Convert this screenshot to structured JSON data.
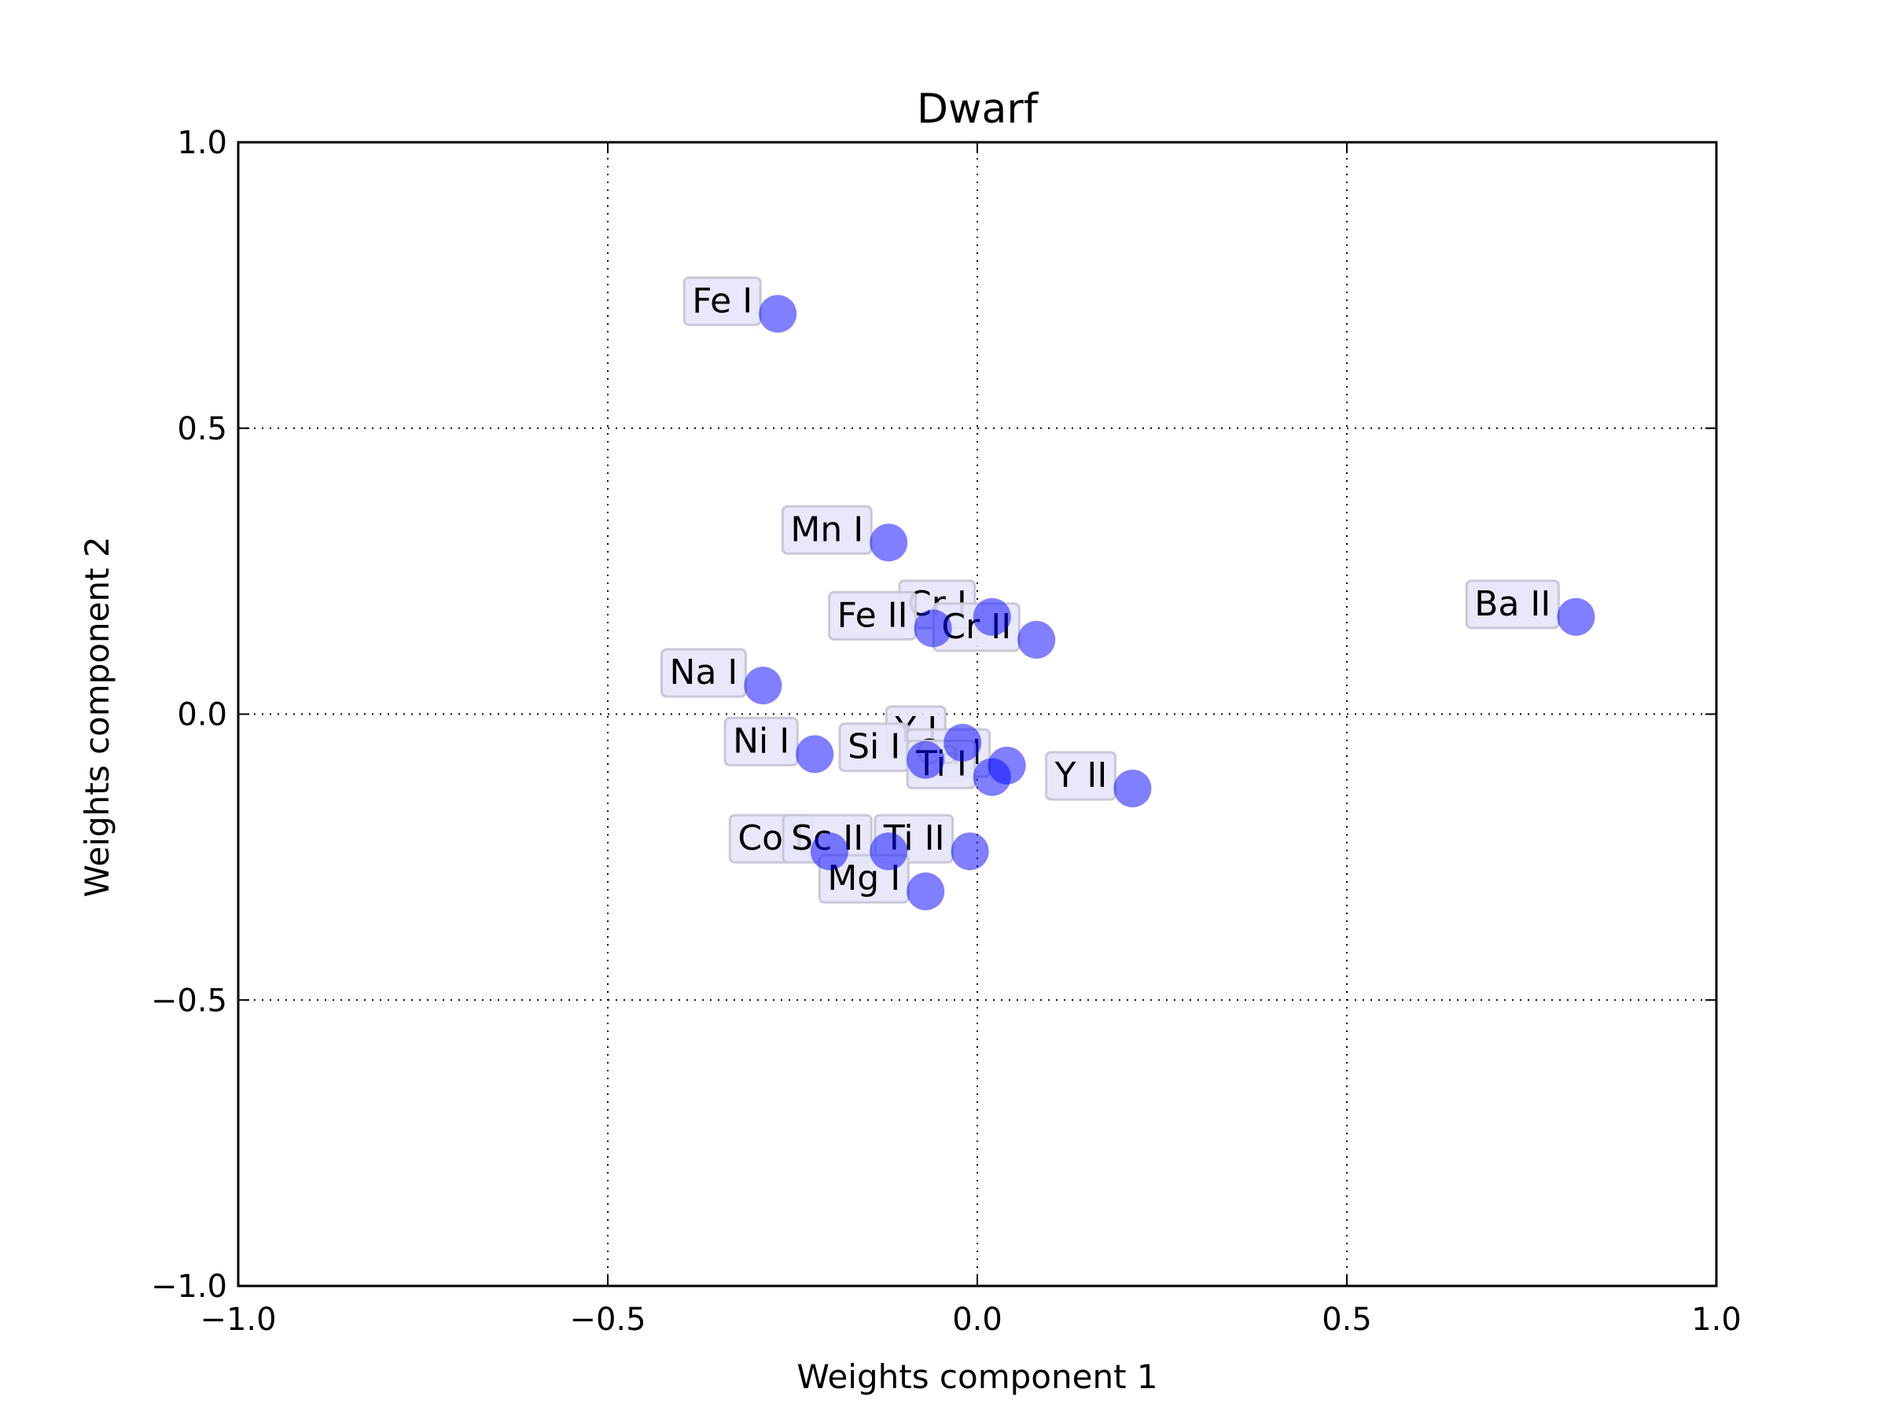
{
  "chart_data": {
    "type": "scatter",
    "title": "Dwarf",
    "xlabel": "Weights component 1",
    "ylabel": "Weights component 2",
    "xlim": [
      -1.0,
      1.0
    ],
    "ylim": [
      -1.0,
      1.0
    ],
    "xticks": [
      -1.0,
      -0.5,
      0.0,
      0.5,
      1.0
    ],
    "yticks": [
      -1.0,
      -0.5,
      0.0,
      0.5,
      1.0
    ],
    "xtick_labels": [
      "−1.0",
      "−0.5",
      "0.0",
      "0.5",
      "1.0"
    ],
    "ytick_labels": [
      "−1.0",
      "−0.5",
      "0.0",
      "0.5",
      "1.0"
    ],
    "grid": true,
    "marker_color": "#0000ff",
    "marker_alpha": 0.5,
    "label_box_color": "#e6e6fa",
    "points": [
      {
        "label": "Fe I",
        "x": -0.27,
        "y": 0.7
      },
      {
        "label": "Mn I",
        "x": -0.12,
        "y": 0.3
      },
      {
        "label": "Ba II",
        "x": 0.81,
        "y": 0.17
      },
      {
        "label": "Cr I",
        "x": 0.02,
        "y": 0.17
      },
      {
        "label": "Fe II",
        "x": -0.06,
        "y": 0.15
      },
      {
        "label": "Cr II",
        "x": 0.08,
        "y": 0.13
      },
      {
        "label": "Na I",
        "x": -0.29,
        "y": 0.05
      },
      {
        "label": "Y I",
        "x": -0.02,
        "y": -0.05
      },
      {
        "label": "Ni I",
        "x": -0.22,
        "y": -0.07
      },
      {
        "label": "Si I",
        "x": -0.07,
        "y": -0.08
      },
      {
        "label": "Ca I",
        "x": 0.04,
        "y": -0.09
      },
      {
        "label": "Ti I",
        "x": 0.02,
        "y": -0.11
      },
      {
        "label": "Y II",
        "x": 0.21,
        "y": -0.13
      },
      {
        "label": "Co I",
        "x": -0.2,
        "y": -0.24
      },
      {
        "label": "Sc II",
        "x": -0.12,
        "y": -0.24
      },
      {
        "label": "Ti II",
        "x": -0.01,
        "y": -0.24
      },
      {
        "label": "Mg I",
        "x": -0.07,
        "y": -0.31
      }
    ]
  }
}
